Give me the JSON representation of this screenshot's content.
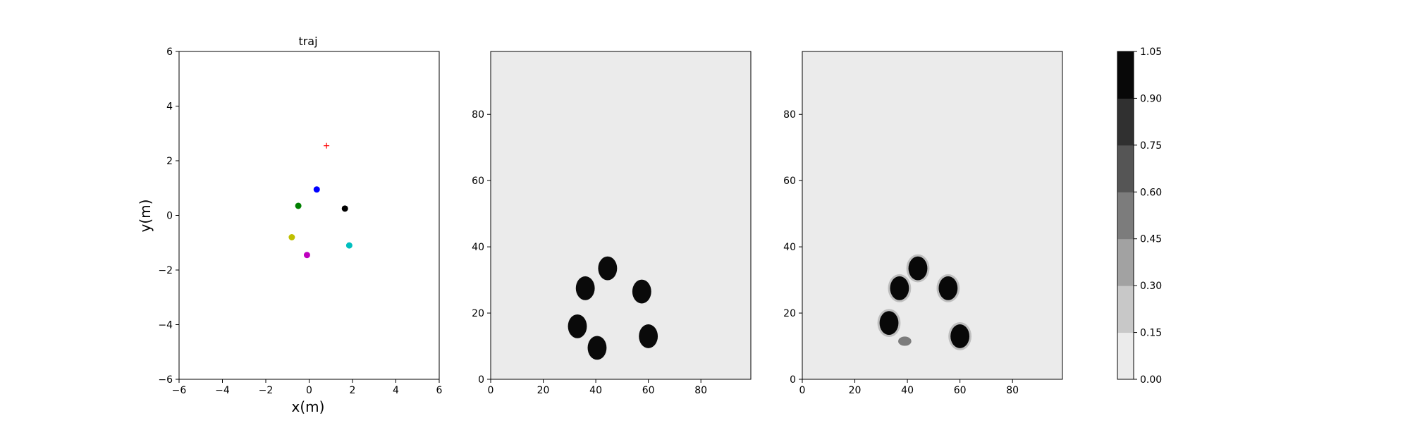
{
  "colors": {
    "heat_background": "#ebebeb",
    "heat_blob": "#0a0a0a",
    "target_marker": "#ff0000"
  },
  "chart_data": [
    {
      "type": "scatter",
      "title": "traj",
      "xlabel": "x(m)",
      "ylabel": "y(m)",
      "xlim": [
        -6,
        6
      ],
      "ylim": [
        -6,
        6
      ],
      "xticks": [
        "−6",
        "−4",
        "−2",
        "0",
        "2",
        "4",
        "6"
      ],
      "yticks": [
        "−6",
        "−4",
        "−2",
        "0",
        "2",
        "4",
        "6"
      ],
      "points": [
        {
          "x": 0.35,
          "y": 0.95,
          "color": "#0000ff"
        },
        {
          "x": -0.5,
          "y": 0.35,
          "color": "#008000"
        },
        {
          "x": 1.65,
          "y": 0.25,
          "color": "#000000"
        },
        {
          "x": -0.8,
          "y": -0.8,
          "color": "#bfbf00"
        },
        {
          "x": 1.85,
          "y": -1.1,
          "color": "#00bfbf"
        },
        {
          "x": -0.1,
          "y": -1.45,
          "color": "#bf00bf"
        }
      ],
      "target": {
        "x": 0.8,
        "y": 2.55,
        "marker": "+"
      }
    },
    {
      "type": "heatmap",
      "xlim": [
        0,
        99
      ],
      "ylim": [
        0,
        99
      ],
      "xticks": [
        "0",
        "20",
        "40",
        "60",
        "80"
      ],
      "yticks": [
        "0",
        "20",
        "40",
        "60",
        "80"
      ],
      "blobs": [
        {
          "x": 44.5,
          "y": 33.5,
          "value": 1.0
        },
        {
          "x": 36,
          "y": 27.5,
          "value": 1.0
        },
        {
          "x": 57.5,
          "y": 26.5,
          "value": 1.0
        },
        {
          "x": 33,
          "y": 16,
          "value": 1.0
        },
        {
          "x": 40.5,
          "y": 9.5,
          "value": 1.0
        },
        {
          "x": 60,
          "y": 13,
          "value": 1.0
        }
      ]
    },
    {
      "type": "heatmap",
      "xlim": [
        0,
        99
      ],
      "ylim": [
        0,
        99
      ],
      "xticks": [
        "0",
        "20",
        "40",
        "60",
        "80"
      ],
      "yticks": [
        "0",
        "20",
        "40",
        "60",
        "80"
      ],
      "blobs": [
        {
          "x": 44,
          "y": 33.5,
          "value": 1.0
        },
        {
          "x": 37,
          "y": 27.5,
          "value": 0.95
        },
        {
          "x": 55.5,
          "y": 27.5,
          "value": 1.0
        },
        {
          "x": 33,
          "y": 17,
          "value": 1.0
        },
        {
          "x": 39,
          "y": 11.5,
          "value": 0.45
        },
        {
          "x": 60,
          "y": 13,
          "value": 1.0
        }
      ]
    }
  ],
  "colorbar": {
    "ticks": [
      "0.00",
      "0.15",
      "0.30",
      "0.45",
      "0.60",
      "0.75",
      "0.90",
      "1.05"
    ],
    "levels": [
      "#ebebeb",
      "#c8c8c8",
      "#a2a2a2",
      "#7c7c7c",
      "#555555",
      "#303030",
      "#080808"
    ]
  }
}
